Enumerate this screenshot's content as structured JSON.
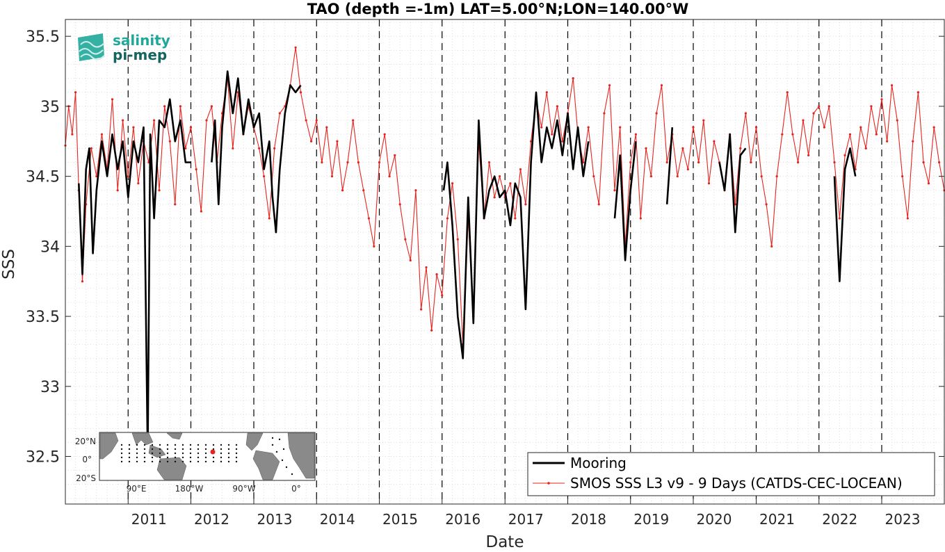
{
  "chart_data": {
    "type": "line",
    "title": "TAO (depth =-1m) LAT=5.00°N;LON=140.00°W",
    "xlabel": "Date",
    "ylabel": "SSS",
    "xlim": [
      "2010-01-01",
      "2023-12-31"
    ],
    "ylim": [
      32.16,
      35.62
    ],
    "y_ticks": [
      32.5,
      33,
      33.5,
      34,
      34.5,
      35,
      35.5
    ],
    "y_tick_labels": [
      "32.5",
      "33",
      "33.5",
      "34",
      "34.5",
      "35",
      "35.5"
    ],
    "x_ticks": [
      "2011-01-01",
      "2012-01-01",
      "2013-01-01",
      "2014-01-01",
      "2015-01-01",
      "2016-01-01",
      "2017-01-01",
      "2018-01-01",
      "2019-01-01",
      "2020-01-01",
      "2021-01-01",
      "2022-01-01",
      "2023-01-01"
    ],
    "x_tick_labels": [
      "2011",
      "2012",
      "2013",
      "2014",
      "2015",
      "2016",
      "2017",
      "2018",
      "2019",
      "2020",
      "2021",
      "2022",
      "2023"
    ],
    "grid": "minor-dotted",
    "year_markers": "dashed-vertical",
    "legend_position": "bottom-right",
    "series": [
      {
        "name": "Mooring",
        "color": "#000000",
        "style": "thick-line",
        "points": [
          [
            "2010-03-20",
            34.45
          ],
          [
            "2010-04-10",
            33.8
          ],
          [
            "2010-05-01",
            34.55
          ],
          [
            "2010-05-20",
            34.7
          ],
          [
            "2010-06-10",
            33.95
          ],
          [
            "2010-07-01",
            34.4
          ],
          [
            "2010-08-01",
            34.75
          ],
          [
            "2010-09-01",
            34.5
          ],
          [
            "2010-10-01",
            34.8
          ],
          [
            "2010-11-01",
            34.55
          ],
          [
            "2010-12-01",
            34.75
          ],
          [
            "2011-01-01",
            34.35
          ],
          [
            "2011-02-01",
            34.75
          ],
          [
            "2011-03-01",
            34.6
          ],
          [
            "2011-04-01",
            34.85
          ],
          [
            "2011-04-25",
            32.5
          ],
          [
            "2011-05-10",
            34.8
          ],
          [
            "2011-06-01",
            34.2
          ],
          [
            "2011-07-01",
            34.9
          ],
          [
            "2011-08-01",
            34.85
          ],
          [
            "2011-09-01",
            35.05
          ],
          [
            "2011-10-01",
            34.75
          ],
          [
            "2011-11-01",
            34.9
          ],
          [
            "2011-12-01",
            34.6
          ],
          [
            "2012-01-01",
            34.6
          ],
          [
            "2012-05-01",
            34.6
          ],
          [
            "2012-05-20",
            34.9
          ],
          [
            "2012-06-10",
            34.3
          ],
          [
            "2012-07-01",
            34.85
          ],
          [
            "2012-08-01",
            35.25
          ],
          [
            "2012-09-01",
            34.95
          ],
          [
            "2012-10-01",
            35.2
          ],
          [
            "2012-11-01",
            34.8
          ],
          [
            "2012-12-01",
            35.05
          ],
          [
            "2013-01-01",
            34.85
          ],
          [
            "2013-02-01",
            34.95
          ],
          [
            "2013-03-01",
            34.55
          ],
          [
            "2013-04-01",
            34.75
          ],
          [
            "2013-04-20",
            34.35
          ],
          [
            "2013-05-10",
            34.1
          ],
          [
            "2013-06-01",
            34.55
          ],
          [
            "2013-07-01",
            34.95
          ],
          [
            "2013-08-01",
            35.15
          ],
          [
            "2013-09-01",
            35.1
          ],
          [
            "2013-10-01",
            35.15
          ],
          [
            "2016-01-10",
            34.4
          ],
          [
            "2016-02-01",
            34.6
          ],
          [
            "2016-03-01",
            34.15
          ],
          [
            "2016-04-01",
            33.5
          ],
          [
            "2016-05-01",
            33.2
          ],
          [
            "2016-06-01",
            34.35
          ],
          [
            "2016-07-01",
            33.45
          ],
          [
            "2016-08-01",
            34.9
          ],
          [
            "2016-09-01",
            34.2
          ],
          [
            "2016-10-01",
            34.4
          ],
          [
            "2016-11-01",
            34.5
          ],
          [
            "2016-12-01",
            34.35
          ],
          [
            "2017-01-01",
            34.4
          ],
          [
            "2017-02-01",
            34.15
          ],
          [
            "2017-03-01",
            34.45
          ],
          [
            "2017-04-01",
            34.35
          ],
          [
            "2017-05-01",
            33.55
          ],
          [
            "2017-06-01",
            34.6
          ],
          [
            "2017-07-01",
            35.1
          ],
          [
            "2017-08-01",
            34.6
          ],
          [
            "2017-09-01",
            34.85
          ],
          [
            "2017-10-01",
            34.7
          ],
          [
            "2017-11-01",
            34.9
          ],
          [
            "2017-12-01",
            34.65
          ],
          [
            "2018-01-01",
            34.95
          ],
          [
            "2018-02-01",
            34.55
          ],
          [
            "2018-03-01",
            34.85
          ],
          [
            "2018-04-01",
            34.5
          ],
          [
            "2018-05-01",
            34.75
          ],
          [
            "2018-10-01",
            34.2
          ],
          [
            "2018-11-01",
            34.65
          ],
          [
            "2018-12-01",
            33.9
          ],
          [
            "2019-01-01",
            34.4
          ],
          [
            "2019-02-01",
            34.75
          ],
          [
            "2019-08-01",
            34.3
          ],
          [
            "2019-09-01",
            34.85
          ],
          [
            "2020-06-01",
            34.6
          ],
          [
            "2020-07-01",
            34.4
          ],
          [
            "2020-08-01",
            34.8
          ],
          [
            "2020-09-01",
            34.1
          ],
          [
            "2020-10-01",
            34.65
          ],
          [
            "2020-11-01",
            34.7
          ],
          [
            "2022-04-01",
            34.5
          ],
          [
            "2022-05-01",
            33.75
          ],
          [
            "2022-06-01",
            34.55
          ],
          [
            "2022-07-01",
            34.7
          ],
          [
            "2022-08-01",
            34.5
          ]
        ]
      },
      {
        "name": "SMOS SSS L3 v9 - 9 Days (CATDS-CEC-LOCEAN)",
        "color": "#e6231e",
        "style": "thin-line-dots",
        "points": [
          [
            "2010-01-01",
            34.72
          ],
          [
            "2010-01-20",
            35.0
          ],
          [
            "2010-02-10",
            34.8
          ],
          [
            "2010-03-01",
            35.1
          ],
          [
            "2010-03-20",
            34.4
          ],
          [
            "2010-04-10",
            33.75
          ],
          [
            "2010-05-01",
            34.3
          ],
          [
            "2010-06-01",
            34.7
          ],
          [
            "2010-07-01",
            34.5
          ],
          [
            "2010-08-01",
            34.8
          ],
          [
            "2010-09-01",
            34.55
          ],
          [
            "2010-10-01",
            35.05
          ],
          [
            "2010-11-01",
            34.4
          ],
          [
            "2010-12-01",
            34.9
          ],
          [
            "2011-01-01",
            34.5
          ],
          [
            "2011-02-01",
            34.85
          ],
          [
            "2011-03-01",
            34.45
          ],
          [
            "2011-04-01",
            34.75
          ],
          [
            "2011-05-01",
            34.6
          ],
          [
            "2011-06-01",
            34.9
          ],
          [
            "2011-07-01",
            34.4
          ],
          [
            "2011-08-01",
            35.0
          ],
          [
            "2011-09-01",
            34.75
          ],
          [
            "2011-10-01",
            34.3
          ],
          [
            "2011-11-01",
            35.0
          ],
          [
            "2011-12-01",
            34.7
          ],
          [
            "2012-01-01",
            34.85
          ],
          [
            "2012-02-01",
            34.55
          ],
          [
            "2012-03-01",
            34.25
          ],
          [
            "2012-04-01",
            34.9
          ],
          [
            "2012-05-01",
            35.0
          ],
          [
            "2012-06-01",
            34.6
          ],
          [
            "2012-07-01",
            34.95
          ],
          [
            "2012-08-01",
            35.2
          ],
          [
            "2012-09-01",
            34.7
          ],
          [
            "2012-10-01",
            35.1
          ],
          [
            "2012-11-01",
            34.8
          ],
          [
            "2012-12-01",
            35.0
          ],
          [
            "2013-01-01",
            34.85
          ],
          [
            "2013-02-01",
            34.7
          ],
          [
            "2013-03-01",
            34.5
          ],
          [
            "2013-04-01",
            34.2
          ],
          [
            "2013-05-01",
            34.7
          ],
          [
            "2013-06-01",
            34.95
          ],
          [
            "2013-07-01",
            35.0
          ],
          [
            "2013-08-01",
            35.15
          ],
          [
            "2013-09-01",
            35.42
          ],
          [
            "2013-10-01",
            35.1
          ],
          [
            "2013-11-01",
            34.9
          ],
          [
            "2013-12-01",
            34.75
          ],
          [
            "2014-01-01",
            34.9
          ],
          [
            "2014-02-01",
            34.6
          ],
          [
            "2014-03-01",
            34.85
          ],
          [
            "2014-04-01",
            34.5
          ],
          [
            "2014-05-01",
            34.75
          ],
          [
            "2014-06-01",
            34.4
          ],
          [
            "2014-07-01",
            34.6
          ],
          [
            "2014-08-01",
            34.9
          ],
          [
            "2014-09-01",
            34.6
          ],
          [
            "2014-10-01",
            34.4
          ],
          [
            "2014-11-01",
            34.2
          ],
          [
            "2014-12-01",
            34.0
          ],
          [
            "2015-01-01",
            34.6
          ],
          [
            "2015-02-01",
            34.8
          ],
          [
            "2015-03-01",
            34.5
          ],
          [
            "2015-04-01",
            34.65
          ],
          [
            "2015-05-01",
            34.3
          ],
          [
            "2015-06-01",
            34.05
          ],
          [
            "2015-07-01",
            33.9
          ],
          [
            "2015-08-01",
            34.4
          ],
          [
            "2015-09-01",
            33.55
          ],
          [
            "2015-10-01",
            33.85
          ],
          [
            "2015-11-01",
            33.4
          ],
          [
            "2015-12-01",
            33.8
          ],
          [
            "2016-01-01",
            33.65
          ],
          [
            "2016-02-01",
            34.2
          ],
          [
            "2016-03-01",
            34.45
          ],
          [
            "2016-04-01",
            34.05
          ],
          [
            "2016-05-01",
            33.3
          ],
          [
            "2016-06-01",
            34.2
          ],
          [
            "2016-07-01",
            33.5
          ],
          [
            "2016-08-01",
            34.75
          ],
          [
            "2016-09-01",
            34.2
          ],
          [
            "2016-10-01",
            34.6
          ],
          [
            "2016-11-01",
            34.35
          ],
          [
            "2016-12-01",
            34.5
          ],
          [
            "2017-01-01",
            34.35
          ],
          [
            "2017-02-01",
            34.45
          ],
          [
            "2017-03-01",
            34.2
          ],
          [
            "2017-04-01",
            34.55
          ],
          [
            "2017-05-01",
            34.3
          ],
          [
            "2017-06-01",
            34.75
          ],
          [
            "2017-07-01",
            35.05
          ],
          [
            "2017-08-01",
            34.85
          ],
          [
            "2017-09-01",
            35.1
          ],
          [
            "2017-10-01",
            34.8
          ],
          [
            "2017-11-01",
            35.0
          ],
          [
            "2017-12-01",
            34.75
          ],
          [
            "2018-01-01",
            34.95
          ],
          [
            "2018-02-01",
            35.2
          ],
          [
            "2018-03-01",
            34.8
          ],
          [
            "2018-04-01",
            34.6
          ],
          [
            "2018-05-01",
            34.85
          ],
          [
            "2018-06-01",
            34.5
          ],
          [
            "2018-07-01",
            34.3
          ],
          [
            "2018-08-01",
            34.95
          ],
          [
            "2018-09-01",
            35.15
          ],
          [
            "2018-10-01",
            34.4
          ],
          [
            "2018-11-01",
            34.85
          ],
          [
            "2018-12-01",
            34.0
          ],
          [
            "2019-01-01",
            34.6
          ],
          [
            "2019-02-01",
            34.8
          ],
          [
            "2019-03-01",
            34.2
          ],
          [
            "2019-04-01",
            34.7
          ],
          [
            "2019-05-01",
            34.5
          ],
          [
            "2019-06-01",
            34.95
          ],
          [
            "2019-07-01",
            35.15
          ],
          [
            "2019-08-01",
            34.6
          ],
          [
            "2019-09-01",
            34.8
          ],
          [
            "2019-10-01",
            34.5
          ],
          [
            "2019-11-01",
            34.7
          ],
          [
            "2019-12-01",
            34.55
          ],
          [
            "2020-01-01",
            34.85
          ],
          [
            "2020-02-01",
            34.6
          ],
          [
            "2020-03-01",
            34.9
          ],
          [
            "2020-04-01",
            34.45
          ],
          [
            "2020-05-01",
            34.75
          ],
          [
            "2020-06-01",
            34.6
          ],
          [
            "2020-07-01",
            34.4
          ],
          [
            "2020-08-01",
            34.8
          ],
          [
            "2020-09-01",
            34.3
          ],
          [
            "2020-10-01",
            34.7
          ],
          [
            "2020-11-01",
            34.95
          ],
          [
            "2020-12-01",
            34.6
          ],
          [
            "2021-01-01",
            34.85
          ],
          [
            "2021-02-01",
            34.5
          ],
          [
            "2021-03-01",
            34.3
          ],
          [
            "2021-04-01",
            34.0
          ],
          [
            "2021-05-01",
            34.5
          ],
          [
            "2021-06-01",
            34.8
          ],
          [
            "2021-07-01",
            35.1
          ],
          [
            "2021-08-01",
            34.8
          ],
          [
            "2021-09-01",
            34.6
          ],
          [
            "2021-10-01",
            34.9
          ],
          [
            "2021-11-01",
            34.65
          ],
          [
            "2021-12-01",
            34.95
          ],
          [
            "2022-01-01",
            35.0
          ],
          [
            "2022-02-01",
            34.85
          ],
          [
            "2022-03-01",
            35.0
          ],
          [
            "2022-04-01",
            34.6
          ],
          [
            "2022-05-01",
            34.2
          ],
          [
            "2022-06-01",
            34.65
          ],
          [
            "2022-07-01",
            34.8
          ],
          [
            "2022-08-01",
            34.55
          ],
          [
            "2022-09-01",
            34.85
          ],
          [
            "2022-10-01",
            34.7
          ],
          [
            "2022-11-01",
            35.0
          ],
          [
            "2022-12-01",
            34.8
          ],
          [
            "2023-01-01",
            35.05
          ],
          [
            "2023-02-01",
            34.75
          ],
          [
            "2023-03-01",
            35.15
          ],
          [
            "2023-04-01",
            34.9
          ],
          [
            "2023-05-01",
            34.5
          ],
          [
            "2023-06-01",
            34.2
          ],
          [
            "2023-07-01",
            34.75
          ],
          [
            "2023-08-01",
            35.1
          ],
          [
            "2023-09-01",
            34.6
          ],
          [
            "2023-10-01",
            34.45
          ],
          [
            "2023-11-01",
            34.85
          ],
          [
            "2023-12-01",
            34.6
          ],
          [
            "2023-12-31",
            34.4
          ]
        ]
      }
    ]
  },
  "logo": {
    "line1": "salinity",
    "line2": "pi-mep",
    "color_primary": "#1fa89a",
    "color_secondary": "#14655f"
  },
  "inset_map": {
    "y_labels": [
      "20°N",
      "0°",
      "20°S"
    ],
    "x_labels": [
      "90°E",
      "180°W",
      "90°W",
      "0°"
    ],
    "land_color": "#8a8a8a",
    "marker_color": "#e6231e"
  },
  "colors": {
    "axis": "#262626",
    "grid": "#d9d9d9"
  }
}
